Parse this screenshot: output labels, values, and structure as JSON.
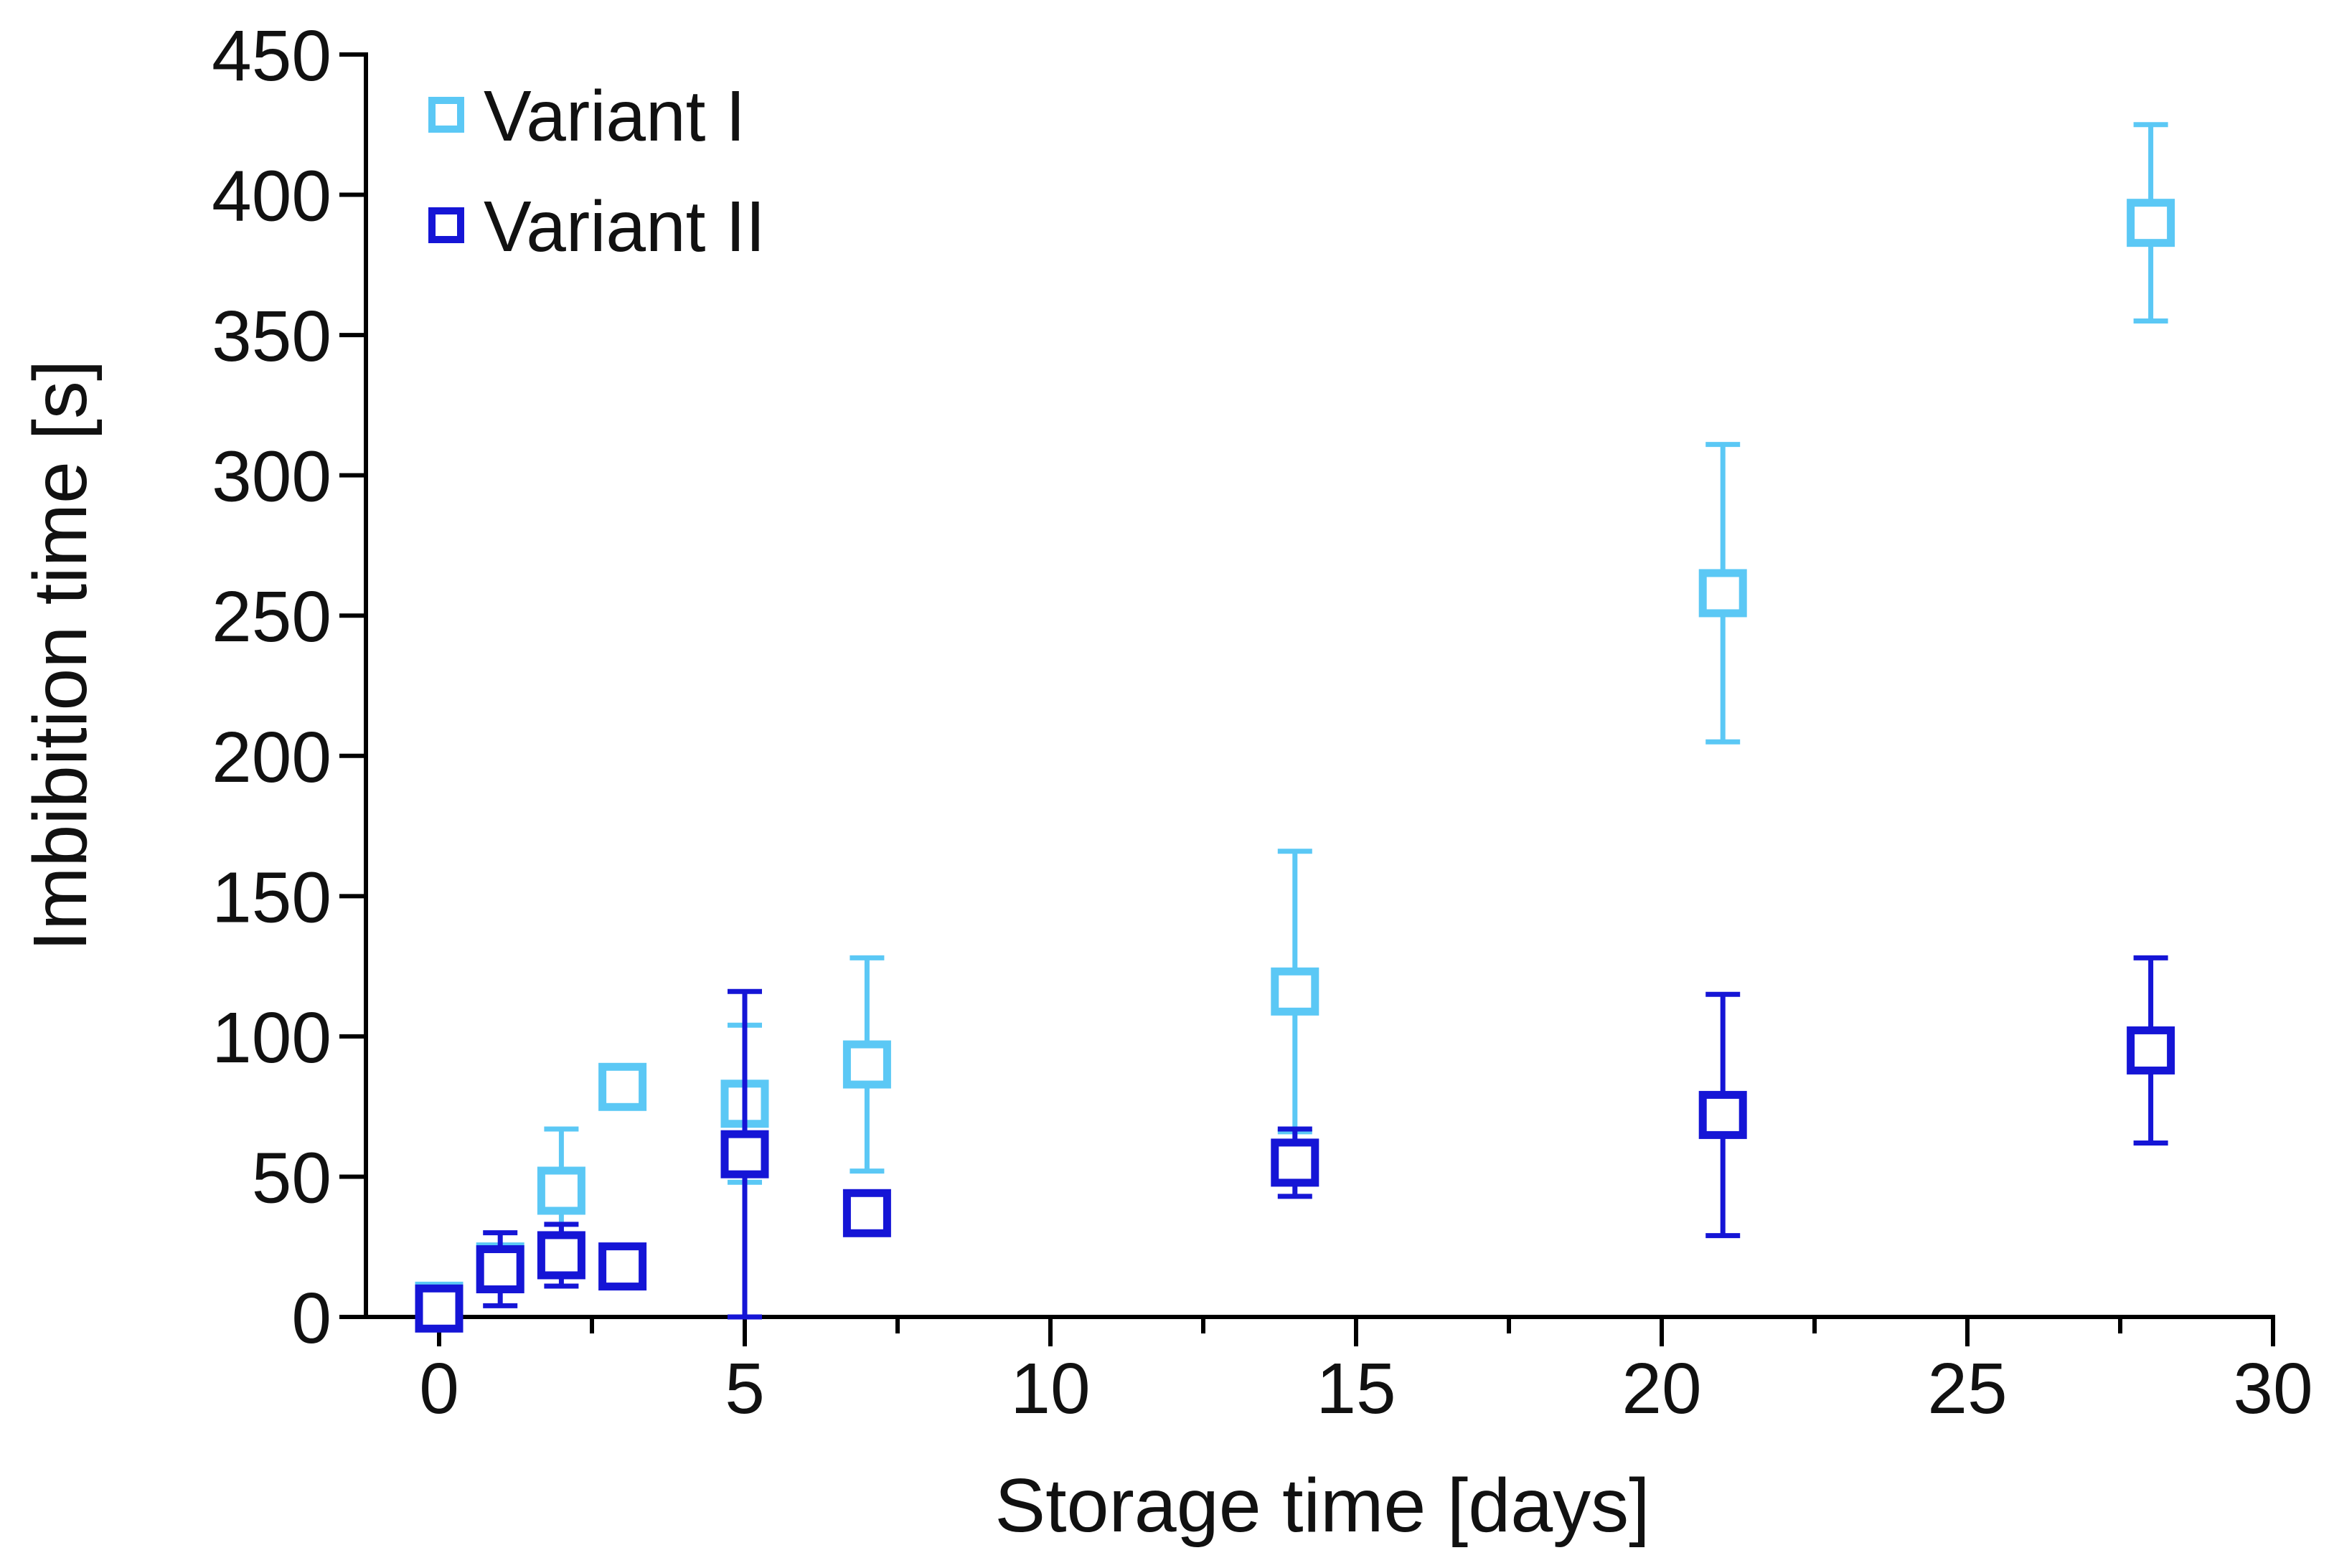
{
  "chart_data": {
    "type": "scatter",
    "title": "",
    "xlabel": "Storage time [days]",
    "ylabel": "Imbibition time [s]",
    "xlim": [
      0,
      30
    ],
    "ylim": [
      0,
      450
    ],
    "x_ticks": [
      0,
      5,
      10,
      15,
      20,
      25,
      30
    ],
    "x_tick_labels": [
      "0",
      "5",
      "10",
      "15",
      "20",
      "25",
      "30"
    ],
    "y_ticks": [
      0,
      50,
      100,
      150,
      200,
      250,
      300,
      350,
      400,
      450
    ],
    "y_tick_labels": [
      "0",
      "50",
      "100",
      "150",
      "200",
      "250",
      "300",
      "350",
      "400",
      "450"
    ],
    "grid": false,
    "legend_position": "top-left",
    "series": [
      {
        "name": "Variant I",
        "color": "#5bc8f5",
        "marker": "open-square",
        "x": [
          0,
          1,
          2,
          3,
          5,
          7,
          14,
          21,
          28
        ],
        "y": [
          4,
          18,
          45,
          82,
          76,
          90,
          116,
          258,
          390
        ],
        "err": [
          0,
          0,
          22,
          0,
          28,
          38,
          50,
          53,
          35
        ]
      },
      {
        "name": "Variant II",
        "color": "#1515d6",
        "marker": "open-square",
        "x": [
          0,
          1,
          2,
          3,
          5,
          7,
          14,
          21,
          28
        ],
        "y": [
          3,
          17,
          22,
          18,
          58,
          37,
          55,
          72,
          95
        ],
        "err": [
          0,
          13,
          11,
          0,
          58,
          0,
          12,
          43,
          33
        ]
      }
    ]
  }
}
